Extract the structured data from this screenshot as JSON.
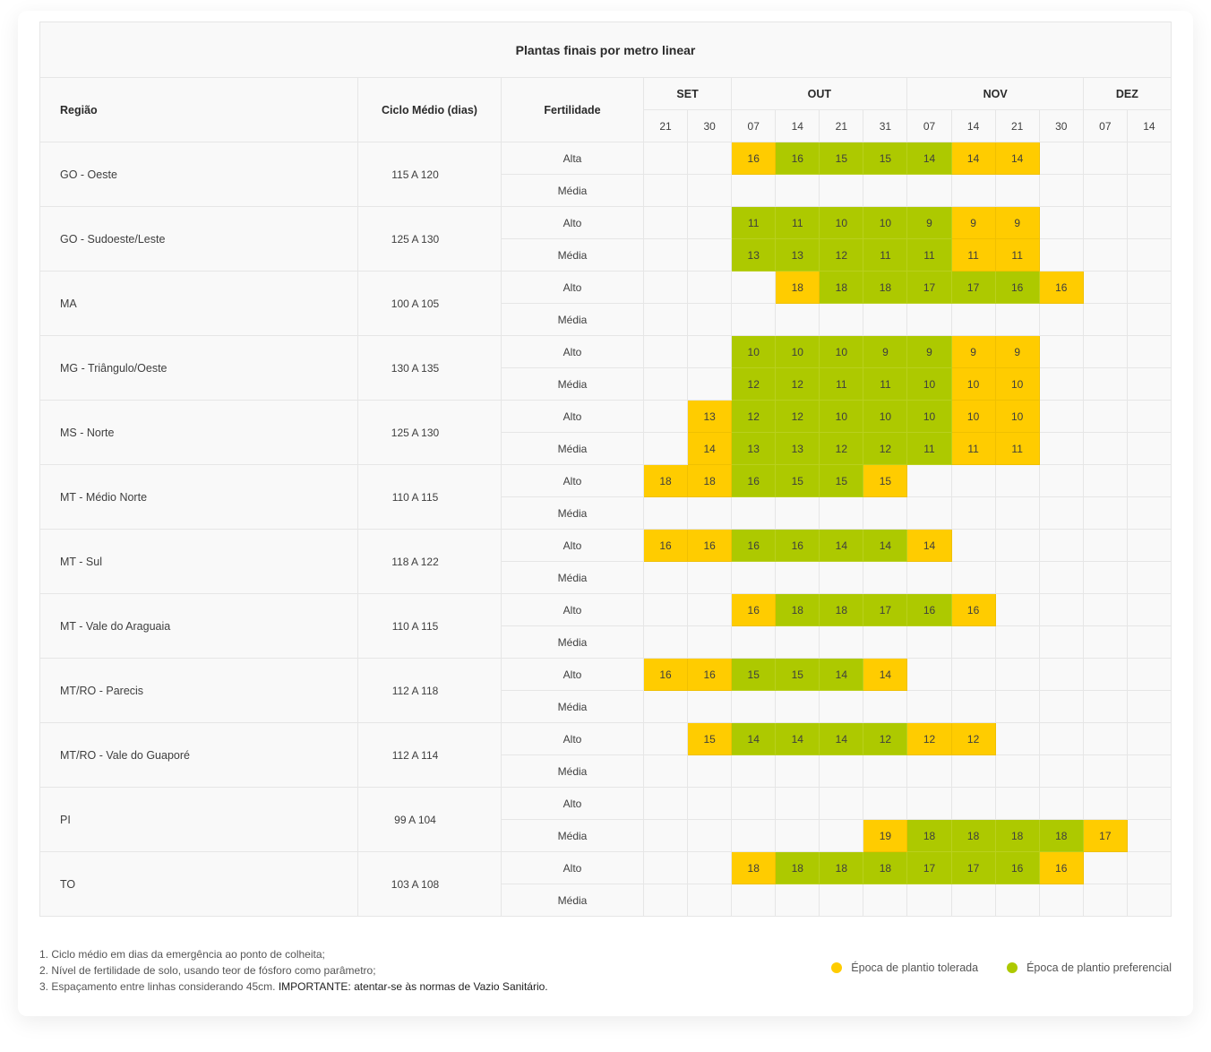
{
  "colors": {
    "tolerada": "#ffcc00",
    "preferencial": "#adc900"
  },
  "chart_data": {
    "type": "table",
    "title": "Plantas finais por metro linear",
    "headers": {
      "region": "Região",
      "ciclo": "Ciclo Médio (dias)",
      "fertilidade": "Fertilidade"
    },
    "months": [
      {
        "label": "SET",
        "days": [
          "21",
          "30"
        ]
      },
      {
        "label": "OUT",
        "days": [
          "07",
          "14",
          "21",
          "31"
        ]
      },
      {
        "label": "NOV",
        "days": [
          "07",
          "14",
          "21",
          "30"
        ]
      },
      {
        "label": "DEZ",
        "days": [
          "07",
          "14"
        ]
      }
    ],
    "legend_codes": {
      "T": "tolerada",
      "P": "preferencial"
    },
    "regions": [
      {
        "name": "GO - Oeste",
        "ciclo": "115 A 120",
        "rows": [
          {
            "fert": "Alta",
            "values": [
              null,
              null,
              16,
              16,
              15,
              15,
              14,
              14,
              14,
              null,
              null,
              null
            ],
            "status": [
              null,
              null,
              "T",
              "P",
              "P",
              "P",
              "P",
              "T",
              "T",
              null,
              null,
              null
            ]
          },
          {
            "fert": "Média",
            "values": [
              null,
              null,
              null,
              null,
              null,
              null,
              null,
              null,
              null,
              null,
              null,
              null
            ],
            "status": [
              null,
              null,
              null,
              null,
              null,
              null,
              null,
              null,
              null,
              null,
              null,
              null
            ]
          }
        ]
      },
      {
        "name": "GO - Sudoeste/Leste",
        "ciclo": "125 A 130",
        "rows": [
          {
            "fert": "Alto",
            "values": [
              null,
              null,
              11,
              11,
              10,
              10,
              9,
              9,
              9,
              null,
              null,
              null
            ],
            "status": [
              null,
              null,
              "P",
              "P",
              "P",
              "P",
              "P",
              "T",
              "T",
              null,
              null,
              null
            ]
          },
          {
            "fert": "Média",
            "values": [
              null,
              null,
              13,
              13,
              12,
              11,
              11,
              11,
              11,
              null,
              null,
              null
            ],
            "status": [
              null,
              null,
              "P",
              "P",
              "P",
              "P",
              "P",
              "T",
              "T",
              null,
              null,
              null
            ]
          }
        ]
      },
      {
        "name": "MA",
        "ciclo": "100 A 105",
        "rows": [
          {
            "fert": "Alto",
            "values": [
              null,
              null,
              null,
              18,
              18,
              18,
              17,
              17,
              16,
              16,
              null,
              null
            ],
            "status": [
              null,
              null,
              null,
              "T",
              "P",
              "P",
              "P",
              "P",
              "P",
              "T",
              null,
              null
            ]
          },
          {
            "fert": "Média",
            "values": [
              null,
              null,
              null,
              null,
              null,
              null,
              null,
              null,
              null,
              null,
              null,
              null
            ],
            "status": [
              null,
              null,
              null,
              null,
              null,
              null,
              null,
              null,
              null,
              null,
              null,
              null
            ]
          }
        ]
      },
      {
        "name": "MG - Triângulo/Oeste",
        "ciclo": "130 A 135",
        "rows": [
          {
            "fert": "Alto",
            "values": [
              null,
              null,
              10,
              10,
              10,
              9,
              9,
              9,
              9,
              null,
              null,
              null
            ],
            "status": [
              null,
              null,
              "P",
              "P",
              "P",
              "P",
              "P",
              "T",
              "T",
              null,
              null,
              null
            ]
          },
          {
            "fert": "Média",
            "values": [
              null,
              null,
              12,
              12,
              11,
              11,
              10,
              10,
              10,
              null,
              null,
              null
            ],
            "status": [
              null,
              null,
              "P",
              "P",
              "P",
              "P",
              "P",
              "T",
              "T",
              null,
              null,
              null
            ]
          }
        ]
      },
      {
        "name": "MS - Norte",
        "ciclo": "125 A 130",
        "rows": [
          {
            "fert": "Alto",
            "values": [
              null,
              13,
              12,
              12,
              10,
              10,
              10,
              10,
              10,
              null,
              null,
              null
            ],
            "status": [
              null,
              "T",
              "P",
              "P",
              "P",
              "P",
              "P",
              "T",
              "T",
              null,
              null,
              null
            ]
          },
          {
            "fert": "Média",
            "values": [
              null,
              14,
              13,
              13,
              12,
              12,
              11,
              11,
              11,
              null,
              null,
              null
            ],
            "status": [
              null,
              "T",
              "P",
              "P",
              "P",
              "P",
              "P",
              "T",
              "T",
              null,
              null,
              null
            ]
          }
        ]
      },
      {
        "name": "MT - Médio Norte",
        "ciclo": "110 A 115",
        "rows": [
          {
            "fert": "Alto",
            "values": [
              18,
              18,
              16,
              15,
              15,
              15,
              null,
              null,
              null,
              null,
              null,
              null
            ],
            "status": [
              "T",
              "T",
              "P",
              "P",
              "P",
              "T",
              null,
              null,
              null,
              null,
              null,
              null
            ]
          },
          {
            "fert": "Média",
            "values": [
              null,
              null,
              null,
              null,
              null,
              null,
              null,
              null,
              null,
              null,
              null,
              null
            ],
            "status": [
              null,
              null,
              null,
              null,
              null,
              null,
              null,
              null,
              null,
              null,
              null,
              null
            ]
          }
        ]
      },
      {
        "name": "MT - Sul",
        "ciclo": "118 A 122",
        "rows": [
          {
            "fert": "Alto",
            "values": [
              16,
              16,
              16,
              16,
              14,
              14,
              14,
              null,
              null,
              null,
              null,
              null
            ],
            "status": [
              "T",
              "T",
              "P",
              "P",
              "P",
              "P",
              "T",
              null,
              null,
              null,
              null,
              null
            ]
          },
          {
            "fert": "Média",
            "values": [
              null,
              null,
              null,
              null,
              null,
              null,
              null,
              null,
              null,
              null,
              null,
              null
            ],
            "status": [
              null,
              null,
              null,
              null,
              null,
              null,
              null,
              null,
              null,
              null,
              null,
              null
            ]
          }
        ]
      },
      {
        "name": "MT - Vale do Araguaia",
        "ciclo": "110 A 115",
        "rows": [
          {
            "fert": "Alto",
            "values": [
              null,
              null,
              16,
              18,
              18,
              17,
              16,
              16,
              null,
              null,
              null,
              null
            ],
            "status": [
              null,
              null,
              "T",
              "P",
              "P",
              "P",
              "P",
              "T",
              null,
              null,
              null,
              null
            ]
          },
          {
            "fert": "Média",
            "values": [
              null,
              null,
              null,
              null,
              null,
              null,
              null,
              null,
              null,
              null,
              null,
              null
            ],
            "status": [
              null,
              null,
              null,
              null,
              null,
              null,
              null,
              null,
              null,
              null,
              null,
              null
            ]
          }
        ]
      },
      {
        "name": "MT/RO - Parecis",
        "ciclo": "112 A 118",
        "rows": [
          {
            "fert": "Alto",
            "values": [
              16,
              16,
              15,
              15,
              14,
              14,
              null,
              null,
              null,
              null,
              null,
              null
            ],
            "status": [
              "T",
              "T",
              "P",
              "P",
              "P",
              "T",
              null,
              null,
              null,
              null,
              null,
              null
            ]
          },
          {
            "fert": "Média",
            "values": [
              null,
              null,
              null,
              null,
              null,
              null,
              null,
              null,
              null,
              null,
              null,
              null
            ],
            "status": [
              null,
              null,
              null,
              null,
              null,
              null,
              null,
              null,
              null,
              null,
              null,
              null
            ]
          }
        ]
      },
      {
        "name": "MT/RO - Vale do Guaporé",
        "ciclo": "112 A 114",
        "rows": [
          {
            "fert": "Alto",
            "values": [
              null,
              15,
              14,
              14,
              14,
              12,
              12,
              12,
              null,
              null,
              null,
              null
            ],
            "status": [
              null,
              "T",
              "P",
              "P",
              "P",
              "P",
              "T",
              "T",
              null,
              null,
              null,
              null
            ]
          },
          {
            "fert": "Média",
            "values": [
              null,
              null,
              null,
              null,
              null,
              null,
              null,
              null,
              null,
              null,
              null,
              null
            ],
            "status": [
              null,
              null,
              null,
              null,
              null,
              null,
              null,
              null,
              null,
              null,
              null,
              null
            ]
          }
        ]
      },
      {
        "name": "PI",
        "ciclo": "99 A 104",
        "rows": [
          {
            "fert": "Alto",
            "values": [
              null,
              null,
              null,
              null,
              null,
              null,
              null,
              null,
              null,
              null,
              null,
              null
            ],
            "status": [
              null,
              null,
              null,
              null,
              null,
              null,
              null,
              null,
              null,
              null,
              null,
              null
            ]
          },
          {
            "fert": "Média",
            "values": [
              null,
              null,
              null,
              null,
              null,
              19,
              18,
              18,
              18,
              18,
              17,
              null
            ],
            "status": [
              null,
              null,
              null,
              null,
              null,
              "T",
              "P",
              "P",
              "P",
              "P",
              "T",
              null
            ]
          }
        ]
      },
      {
        "name": "TO",
        "ciclo": "103 A 108",
        "rows": [
          {
            "fert": "Alto",
            "values": [
              null,
              null,
              18,
              18,
              18,
              18,
              17,
              17,
              16,
              16,
              null,
              null
            ],
            "status": [
              null,
              null,
              "T",
              "P",
              "P",
              "P",
              "P",
              "P",
              "P",
              "T",
              null,
              null
            ]
          },
          {
            "fert": "Média",
            "values": [
              null,
              null,
              null,
              null,
              null,
              null,
              null,
              null,
              null,
              null,
              null,
              null
            ],
            "status": [
              null,
              null,
              null,
              null,
              null,
              null,
              null,
              null,
              null,
              null,
              null,
              null
            ]
          }
        ]
      }
    ]
  },
  "notes": {
    "line1": "1. Ciclo médio em dias da emergência ao ponto de colheita;",
    "line2": "2. Nível de fertilidade de solo, usando teor de fósforo como parâmetro;",
    "line3": "3. Espaçamento entre linhas considerando 45cm.",
    "line3_strong": "IMPORTANTE: atentar-se às normas de Vazio Sanitário."
  },
  "legend": {
    "tolerada": "Época de plantio tolerada",
    "preferencial": "Época de plantio preferencial"
  }
}
